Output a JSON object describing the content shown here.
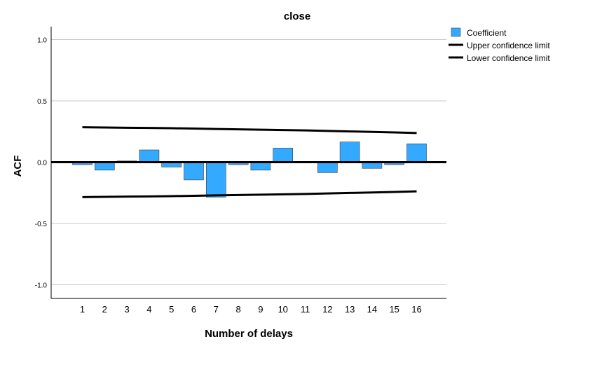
{
  "chart_data": {
    "type": "bar",
    "title": "close",
    "xlabel": "Number of delays",
    "ylabel": "ACF",
    "categories": [
      "1",
      "2",
      "3",
      "4",
      "5",
      "6",
      "7",
      "8",
      "9",
      "10",
      "11",
      "12",
      "13",
      "14",
      "15",
      "16"
    ],
    "series": [
      {
        "name": "Coefficient",
        "values": [
          -0.02,
          -0.065,
          0.01,
          0.1,
          -0.04,
          -0.145,
          -0.285,
          -0.02,
          -0.065,
          0.115,
          0.0,
          -0.085,
          0.165,
          -0.05,
          -0.02,
          0.15
        ],
        "color": "#33aaff"
      },
      {
        "name": "Upper confidence limit",
        "values": [
          0.285,
          0.283,
          0.281,
          0.279,
          0.277,
          0.274,
          0.271,
          0.268,
          0.265,
          0.262,
          0.259,
          0.255,
          0.251,
          0.247,
          0.243,
          0.238
        ],
        "color": "#000000"
      },
      {
        "name": "Lower confidence limit",
        "values": [
          -0.285,
          -0.283,
          -0.281,
          -0.279,
          -0.277,
          -0.274,
          -0.271,
          -0.268,
          -0.265,
          -0.262,
          -0.259,
          -0.255,
          -0.251,
          -0.247,
          -0.243,
          -0.238
        ],
        "color": "#000000"
      }
    ],
    "ylim": [
      -1.1,
      1.1
    ],
    "yticks": [
      "-1.0",
      "-0.5",
      "0.0",
      "0.5",
      "1.0"
    ],
    "ytick_values": [
      -1.0,
      -0.5,
      0.0,
      0.5,
      1.0
    ],
    "grid": true,
    "legend_position": "top-right"
  }
}
